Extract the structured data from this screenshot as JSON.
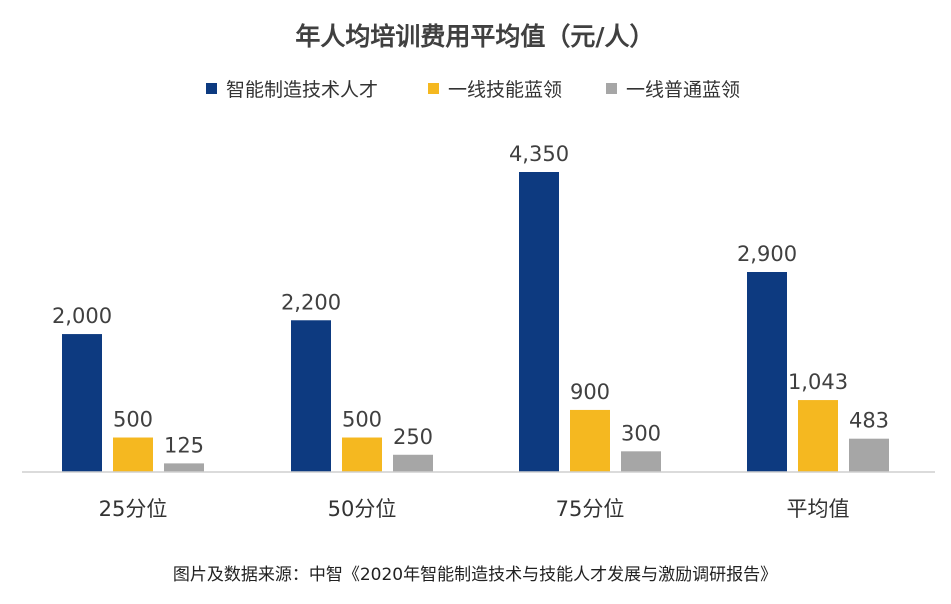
{
  "chart_data": {
    "type": "bar",
    "title": "年人均培训费用平均值（元/人）",
    "categories": [
      "25分位",
      "50分位",
      "75分位",
      "平均值"
    ],
    "series": [
      {
        "name": "智能制造技术人才",
        "color": "#0d3a80",
        "values": [
          2000,
          2200,
          4350,
          2900
        ],
        "labels": [
          "2,000",
          "2,200",
          "4,350",
          "2,900"
        ]
      },
      {
        "name": "一线技能蓝领",
        "color": "#f5b820",
        "values": [
          500,
          500,
          900,
          1043
        ],
        "labels": [
          "500",
          "500",
          "900",
          "1,043"
        ]
      },
      {
        "name": "一线普通蓝领",
        "color": "#a6a6a6",
        "values": [
          125,
          250,
          300,
          483
        ],
        "labels": [
          "125",
          "250",
          "300",
          "483"
        ]
      }
    ],
    "xlabel": "",
    "ylabel": "",
    "ylim": [
      0,
      4350
    ],
    "grid": false,
    "legend_position": "top-center"
  },
  "source": "图片及数据来源：中智《2020年智能制造技术与技能人才发展与激励调研报告》"
}
